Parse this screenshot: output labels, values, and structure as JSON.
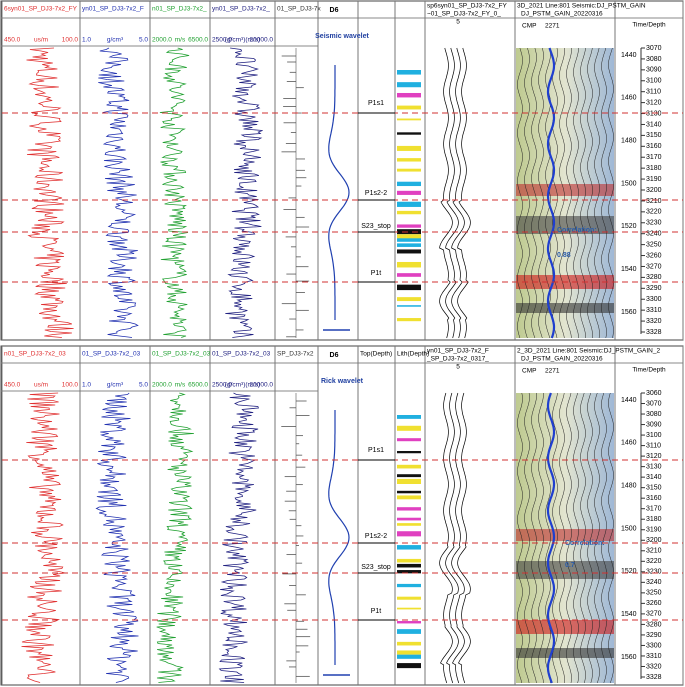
{
  "panels": [
    {
      "title": "D6",
      "wavelet_label": "Seismic wavelet",
      "correlation_label": "Correlation:",
      "correlation_value": "0.88",
      "track_headers": [
        "6syn01_SP_DJ3-7x2_FY",
        "yn01_SP_DJ3-7x2_F",
        "n01_SP_DJ3-7x2_",
        "yn01_SP_DJ3-7x2_",
        "01_SP_DJ3-7x"
      ],
      "scales": [
        [
          "450.0",
          "us/m",
          "100.0"
        ],
        [
          "1.0",
          "g/cm³",
          "5.0"
        ],
        [
          "2000.0",
          "m/s",
          "6500.0"
        ],
        [
          "2500.0",
          "(g/cm³)(m/s)",
          "20000.0"
        ]
      ],
      "column_headers": [],
      "synthetic_header": [
        "sp6syn01_SP_DJ3-7x2_FY",
        "~01_SP_DJ3-7x2_FY_0_",
        "5"
      ],
      "seismic_header": [
        "3D_2021  Line:801 Seismic:DJ_PSTM_GAIN",
        "DJ_PSTM_GAIN_20220316",
        "CMP",
        "2271"
      ],
      "time_depth_header": "Time/Depth",
      "horizons": [
        "P1s1",
        "P1s2-2",
        "S23_stop",
        "P1t"
      ],
      "times": [
        1440,
        1460,
        1480,
        1500,
        1520,
        1540,
        1560
      ],
      "depths": [
        3070,
        3080,
        3090,
        3100,
        3110,
        3120,
        3130,
        3140,
        3150,
        3160,
        3170,
        3180,
        3190,
        3200,
        3210,
        3220,
        3230,
        3240,
        3250,
        3260,
        3270,
        3280,
        3290,
        3300,
        3310,
        3320,
        3328
      ]
    },
    {
      "title": "D6",
      "wavelet_label": "Rick wavelet",
      "correlation_label": "Correlation:",
      "correlation_value": "0.7",
      "track_headers": [
        "n01_SP_DJ3-7x2_03",
        "01_SP_DJ3-7x2_03",
        "01_SP_DJ3-7x2_03",
        "01_SP_DJ3-7x2_03",
        "SP_DJ3-7x2"
      ],
      "scales": [
        [
          "450.0",
          "us/m",
          "100.0"
        ],
        [
          "1.0",
          "g/cm³",
          "5.0"
        ],
        [
          "2000.0",
          "m/s",
          "6500.0"
        ],
        [
          "2500.0",
          "(g/cm³)(m/s)",
          "20000.0"
        ]
      ],
      "column_headers": [
        "Top(Depth)",
        "Lith(Depth)"
      ],
      "synthetic_header": [
        "yn01_SP_DJ3-7x2_F",
        "_SP_DJ3-7x2_0317_",
        "5"
      ],
      "seismic_header": [
        "2_3D_2021  Line:801 Seismic:DJ_PSTM_GAIN_2",
        "DJ_PSTM_GAIN_20220316",
        "CMP",
        "2271"
      ],
      "time_depth_header": "Time/Depth",
      "horizons": [
        "P1s1",
        "P1s2-2",
        "S23_stop",
        "P1t"
      ],
      "times": [
        1440,
        1460,
        1480,
        1500,
        1520,
        1540,
        1560
      ],
      "depths": [
        3060,
        3070,
        3080,
        3090,
        3100,
        3110,
        3120,
        3130,
        3140,
        3150,
        3160,
        3170,
        3180,
        3190,
        3200,
        3210,
        3220,
        3230,
        3240,
        3250,
        3260,
        3270,
        3280,
        3290,
        3300,
        3310,
        3320,
        3328
      ]
    }
  ]
}
